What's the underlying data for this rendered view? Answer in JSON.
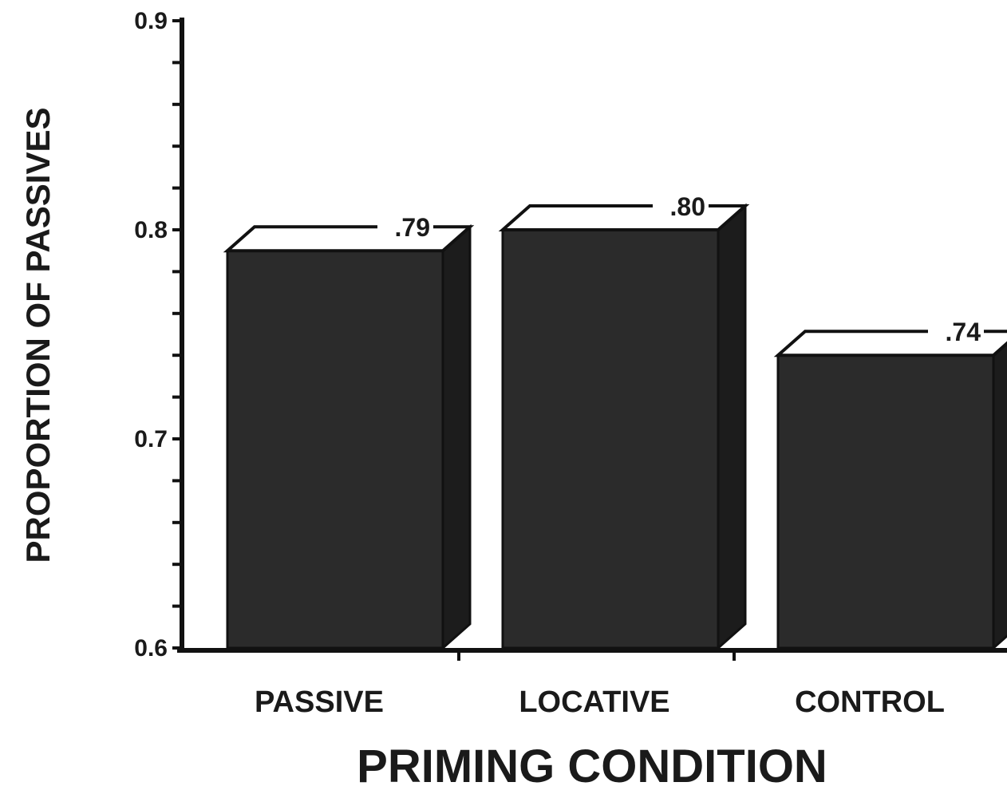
{
  "chart_data": {
    "type": "bar",
    "style": "3d-column",
    "title": "",
    "xlabel": "PRIMING CONDITION",
    "ylabel": "PROPORTION OF PASSIVES",
    "categories": [
      "PASSIVE",
      "LOCATIVE",
      "CONTROL"
    ],
    "values": [
      0.79,
      0.8,
      0.74
    ],
    "value_labels": [
      ".79",
      ".80",
      ".74"
    ],
    "ylim": [
      0.6,
      0.9
    ],
    "yticks": [
      0.6,
      0.7,
      0.8,
      0.9
    ],
    "ytick_labels": [
      "0.6",
      "0.7",
      "0.8",
      "0.9"
    ],
    "grid": false,
    "legend": "none",
    "colors": {
      "bar_front": "#2b2b2b",
      "bar_side": "#1c1c1c",
      "bar_top": "#ffffff",
      "axis": "#111111",
      "text": "#1a1a1a"
    }
  }
}
